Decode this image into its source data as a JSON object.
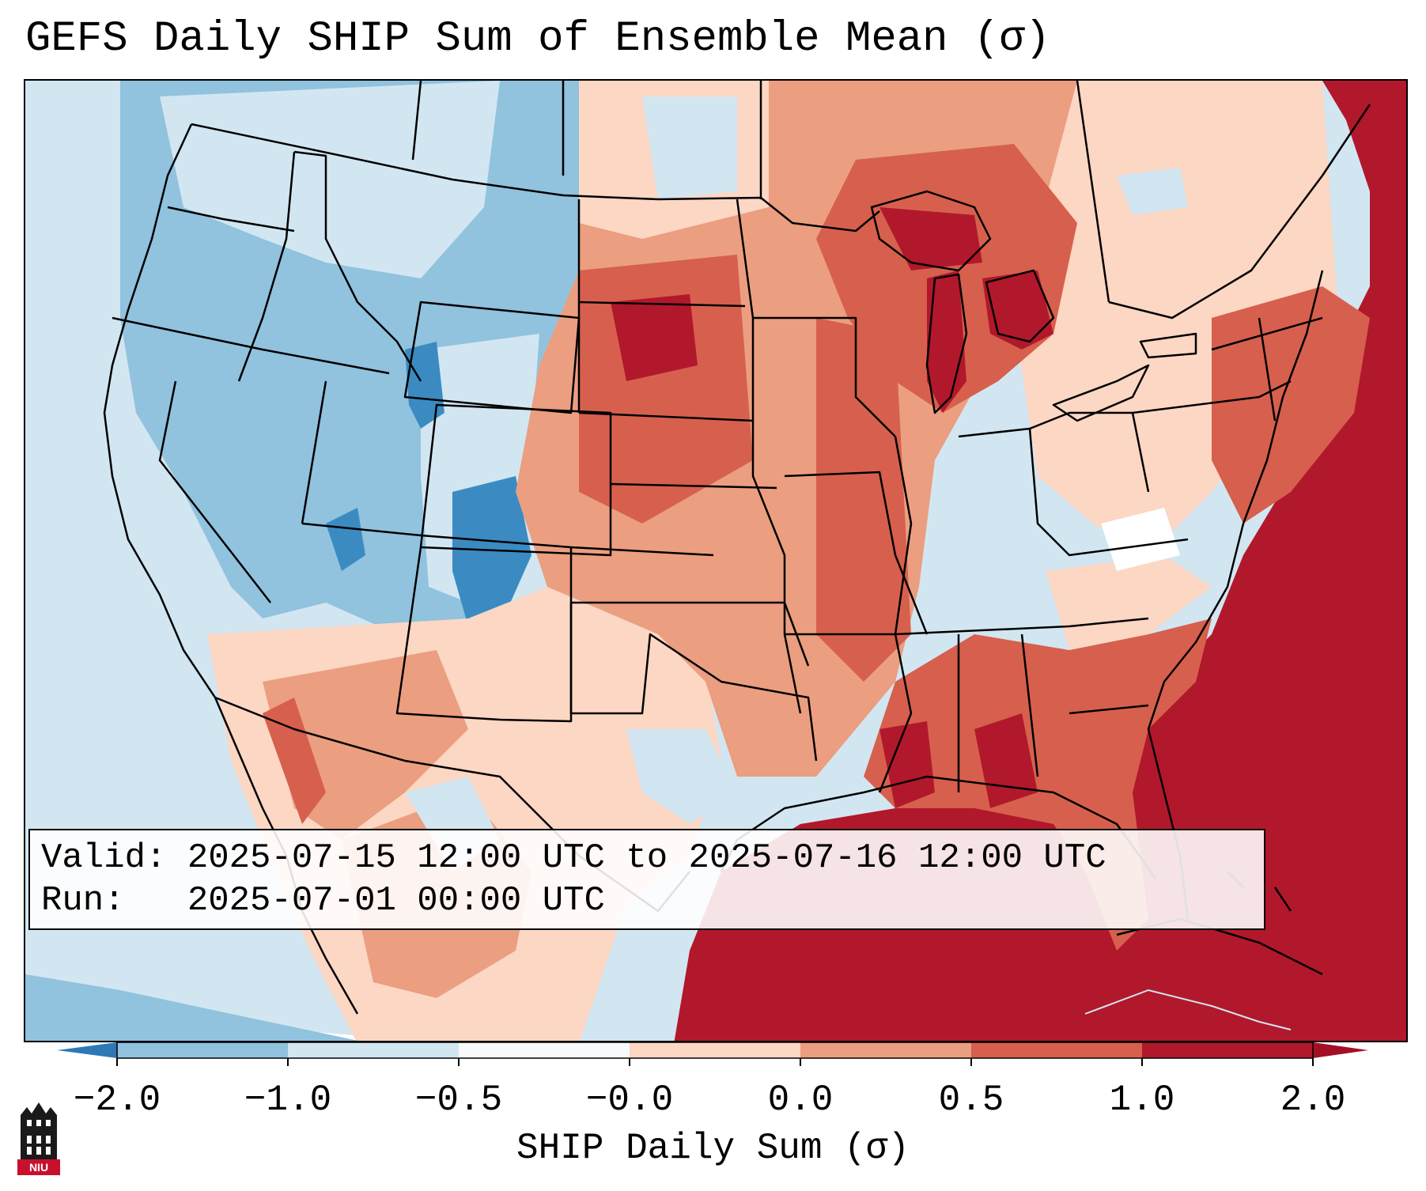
{
  "title": "GEFS Daily SHIP Sum of Ensemble Mean (σ)",
  "info": {
    "valid_label": "Valid:",
    "valid_value": "2025-07-15 12:00 UTC to 2025-07-16 12:00 UTC",
    "run_label": "Run:",
    "run_value": "2025-07-01 00:00 UTC"
  },
  "colorbar": {
    "label": "SHIP Daily Sum (σ)",
    "ticks": [
      "−2.0",
      "−1.0",
      "−0.5",
      "−0.0",
      "0.0",
      "0.5",
      "1.0",
      "2.0"
    ],
    "colors": [
      "#3b8bc2",
      "#91c2de",
      "#d2e6f1",
      "#f7f9fa",
      "#fbd7c4",
      "#eb9e80",
      "#d6604d",
      "#b2182b"
    ],
    "extend_low_color": "#2e79b5",
    "extend_high_color": "#a50f25"
  },
  "logo_text": "NIU"
}
